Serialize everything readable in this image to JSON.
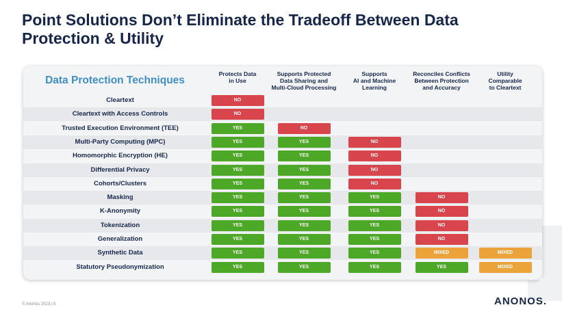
{
  "slide": {
    "title": "Point Solutions Don’t Eliminate the Tradeoff Between Data\nProtection & Utility",
    "footer": "© Anonos 2023  |  6",
    "logo": "ANONOS."
  },
  "table": {
    "heading": "Data Protection Techniques",
    "columns": [
      "Protects Data\nin Use",
      "Supports Protected\nData Sharing and\nMulti-Cloud Processing",
      "Supports\nAI and Machine\nLearning",
      "Reconciles Conflicts\nBetween Protection\nand Accuracy",
      "Utility\nComparable\nto Cleartext"
    ],
    "rows": [
      {
        "label": "Cleartext",
        "cells": [
          "NO",
          "",
          "",
          "",
          ""
        ]
      },
      {
        "label": "Cleartext with Access Controls",
        "cells": [
          "NO",
          "",
          "",
          "",
          ""
        ]
      },
      {
        "label": "Trusted Execution Environment (TEE)",
        "cells": [
          "YES",
          "NO",
          "",
          "",
          ""
        ]
      },
      {
        "label": "Multi-Party Computing (MPC)",
        "cells": [
          "YES",
          "YES",
          "NO",
          "",
          ""
        ]
      },
      {
        "label": "Homomorphic Encryption (HE)",
        "cells": [
          "YES",
          "YES",
          "NO",
          "",
          ""
        ]
      },
      {
        "label": "Differential Privacy",
        "cells": [
          "YES",
          "YES",
          "NO",
          "",
          ""
        ]
      },
      {
        "label": "Cohorts/Clusters",
        "cells": [
          "YES",
          "YES",
          "NO",
          "",
          ""
        ]
      },
      {
        "label": "Masking",
        "cells": [
          "YES",
          "YES",
          "YES",
          "NO",
          ""
        ]
      },
      {
        "label": "K-Anonymity",
        "cells": [
          "YES",
          "YES",
          "YES",
          "NO",
          ""
        ]
      },
      {
        "label": "Tokenization",
        "cells": [
          "YES",
          "YES",
          "YES",
          "NO",
          ""
        ]
      },
      {
        "label": "Generalization",
        "cells": [
          "YES",
          "YES",
          "YES",
          "NO",
          ""
        ]
      },
      {
        "label": "Synthetic Data",
        "cells": [
          "YES",
          "YES",
          "YES",
          "MIXED",
          "MIXED"
        ]
      },
      {
        "label": "Statutory Pseudonymization",
        "cells": [
          "YES",
          "YES",
          "YES",
          "YES",
          "MIXED"
        ]
      }
    ]
  },
  "colors": {
    "yes": "#4ea827",
    "no": "#d8454d",
    "mixed": "#eca43a",
    "title": "#16264a",
    "heading": "#3f8fc4"
  }
}
